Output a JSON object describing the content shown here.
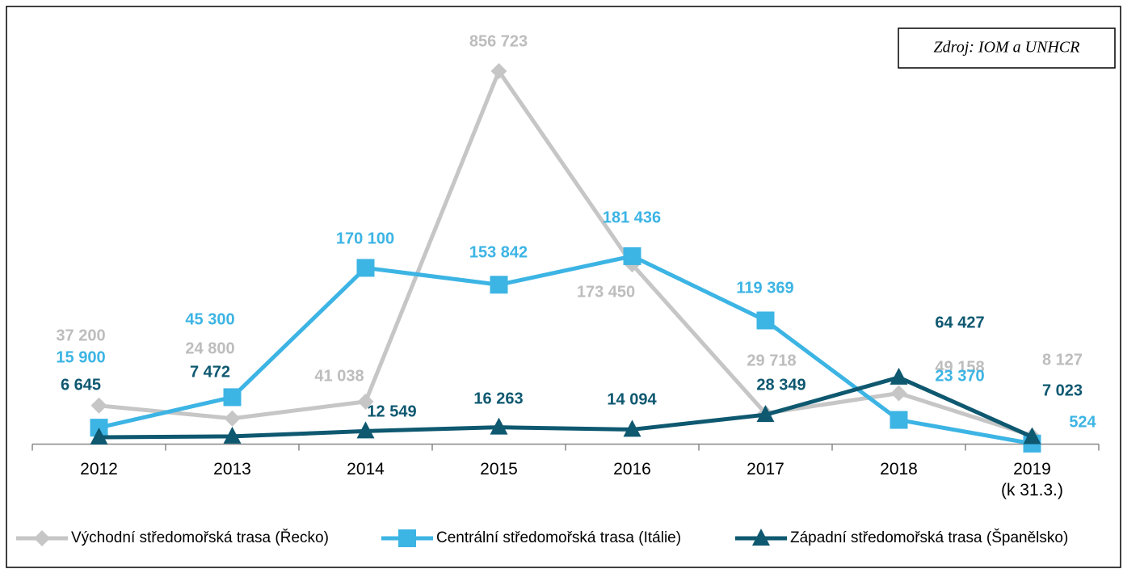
{
  "chart_data": {
    "type": "line",
    "source": "Zdroj: IOM a UNHCR",
    "categories": [
      "2012",
      "2013",
      "2014",
      "2015",
      "2016",
      "2017",
      "2018",
      "2019\n(k 31.3.)"
    ],
    "ylim": [
      0,
      360000
    ],
    "series": [
      {
        "name": "Východní středomořská trasa (Řecko)",
        "color": "#c6c6c6",
        "marker": "diamond",
        "values": [
          37200,
          24800,
          41038,
          856723,
          173450,
          29718,
          49158,
          8127
        ],
        "value_labels": [
          "37 200",
          "24 800",
          "41 038",
          "856 723",
          "173 450",
          "29 718",
          "49 158",
          "8 127"
        ]
      },
      {
        "name": "Centrální středomořská trasa (Itálie)",
        "color": "#3cb4e4",
        "marker": "square",
        "values": [
          15900,
          45300,
          170100,
          153842,
          181436,
          119369,
          23370,
          524
        ],
        "value_labels": [
          "15 900",
          "45 300",
          "170 100",
          "153 842",
          "181 436",
          "119 369",
          "23 370",
          "524"
        ]
      },
      {
        "name": "Západní středomořská trasa (Španělsko)",
        "color": "#0e5870",
        "marker": "triangle",
        "values": [
          6645,
          7472,
          12549,
          16263,
          14094,
          28349,
          64427,
          7023
        ],
        "value_labels": [
          "6 645",
          "7 472",
          "12 549",
          "16 263",
          "14 094",
          "28 349",
          "64 427",
          "7 023"
        ]
      }
    ]
  }
}
